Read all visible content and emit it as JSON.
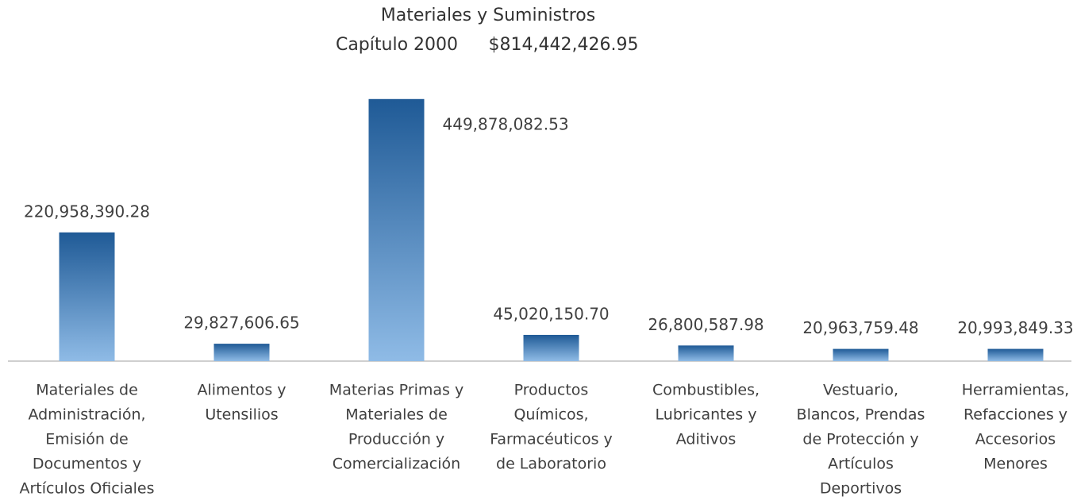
{
  "chart_data": {
    "type": "bar",
    "title": "Materiales y Suministros",
    "subtitle": "Capítulo 2000",
    "total_label": "$814,442,426.95",
    "categories": [
      [
        "Materiales de",
        "Administración,",
        "Emisión de",
        "Documentos y",
        "Artículos Oficiales"
      ],
      [
        "Alimentos y",
        "Utensilios"
      ],
      [
        "Materias Primas y",
        "Materiales de",
        "Producción y",
        "Comercialización"
      ],
      [
        "Productos",
        "Químicos,",
        "Farmacéuticos y",
        "de Laboratorio"
      ],
      [
        "Combustibles,",
        "Lubricantes y",
        "Aditivos"
      ],
      [
        "Vestuario,",
        "Blancos, Prendas",
        "de Protección y",
        "Artículos",
        "Deportivos"
      ],
      [
        "Herramientas,",
        "Refacciones y",
        "Accesorios",
        "Menores"
      ]
    ],
    "values": [
      220958390.28,
      29827606.65,
      449878082.53,
      45020150.7,
      26800587.98,
      20963759.48,
      20993849.33
    ],
    "value_labels": [
      "220,958,390.28",
      "29,827,606.65",
      "449,878,082.53",
      "45,020,150.70",
      "26,800,587.98",
      "20,963,759.48",
      "20,993,849.33"
    ],
    "ylim": [
      0,
      500000000
    ]
  }
}
